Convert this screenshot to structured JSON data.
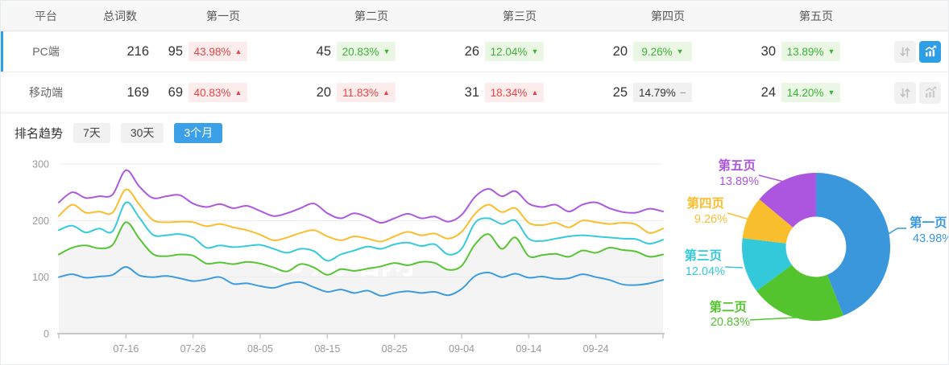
{
  "table": {
    "headers": [
      "平台",
      "总词数",
      "第一页",
      "第二页",
      "第三页",
      "第四页",
      "第五页"
    ],
    "rows": [
      {
        "platform": "PC端",
        "total": "216",
        "active": true,
        "pages": [
          {
            "count": "95",
            "pct": "43.98%",
            "dir": "up",
            "tone": "red"
          },
          {
            "count": "45",
            "pct": "20.83%",
            "dir": "down",
            "tone": "green"
          },
          {
            "count": "26",
            "pct": "12.04%",
            "dir": "down",
            "tone": "green"
          },
          {
            "count": "20",
            "pct": "9.26%",
            "dir": "down",
            "tone": "green"
          },
          {
            "count": "30",
            "pct": "13.89%",
            "dir": "down",
            "tone": "green"
          }
        ],
        "trend_button_active": true
      },
      {
        "platform": "移动端",
        "total": "169",
        "active": false,
        "pages": [
          {
            "count": "69",
            "pct": "40.83%",
            "dir": "up",
            "tone": "red"
          },
          {
            "count": "20",
            "pct": "11.83%",
            "dir": "up",
            "tone": "red"
          },
          {
            "count": "31",
            "pct": "18.34%",
            "dir": "up",
            "tone": "red"
          },
          {
            "count": "25",
            "pct": "14.79%",
            "dir": "flat",
            "tone": "gray"
          },
          {
            "count": "24",
            "pct": "14.20%",
            "dir": "down",
            "tone": "green"
          }
        ],
        "trend_button_active": false
      }
    ],
    "icons": {
      "sort": "sort-arrows-icon",
      "trend": "trend-chart-icon"
    }
  },
  "trend_section": {
    "label": "排名趋势",
    "tabs": [
      {
        "label": "7天",
        "active": false
      },
      {
        "label": "30天",
        "active": false
      },
      {
        "label": "3个月",
        "active": true
      }
    ]
  },
  "watermark": "爱站网",
  "colors": {
    "accent_blue": "#2e9ee6",
    "badge_red_text": "#e64545",
    "badge_green_text": "#3cb435",
    "area_fill": "#f4f4f4"
  },
  "chart_data": [
    {
      "type": "line",
      "title": "排名趋势 (3个月)",
      "x_tick_labels": [
        "07-16",
        "07-26",
        "08-05",
        "08-15",
        "08-25",
        "09-04",
        "09-14",
        "09-24"
      ],
      "x_tick_indices": [
        5,
        10,
        15,
        20,
        25,
        30,
        35,
        40
      ],
      "ylim": [
        0,
        300
      ],
      "yticks": [
        0,
        100,
        200,
        300
      ],
      "grid": true,
      "legend": "none",
      "series": [
        {
          "name": "第一页",
          "color": "#3e9bdd",
          "values": [
            100,
            105,
            99,
            101,
            104,
            118,
            103,
            100,
            102,
            98,
            93,
            96,
            100,
            88,
            89,
            84,
            81,
            88,
            91,
            82,
            74,
            78,
            72,
            76,
            67,
            72,
            75,
            72,
            74,
            68,
            79,
            102,
            108,
            100,
            106,
            99,
            101,
            97,
            98,
            105,
            100,
            95,
            87,
            86,
            89,
            95
          ]
        },
        {
          "name": "第二页",
          "color": "#57c433",
          "area": true,
          "area_color": "#f4f4f4",
          "values": [
            140,
            152,
            156,
            151,
            157,
            197,
            168,
            141,
            137,
            140,
            138,
            124,
            126,
            123,
            127,
            124,
            117,
            110,
            123,
            117,
            104,
            114,
            111,
            115,
            119,
            125,
            121,
            127,
            125,
            113,
            120,
            158,
            176,
            150,
            170,
            137,
            139,
            141,
            136,
            147,
            143,
            152,
            148,
            145,
            136,
            140
          ]
        },
        {
          "name": "第三页",
          "color": "#36cadc",
          "values": [
            183,
            191,
            179,
            186,
            181,
            232,
            205,
            175,
            174,
            176,
            170,
            152,
            156,
            153,
            155,
            157,
            150,
            143,
            150,
            146,
            129,
            140,
            147,
            154,
            150,
            158,
            161,
            155,
            158,
            140,
            150,
            196,
            204,
            194,
            200,
            168,
            164,
            168,
            172,
            174,
            172,
            170,
            168,
            167,
            159,
            166
          ]
        },
        {
          "name": "第四页",
          "color": "#fabd2e",
          "values": [
            208,
            228,
            214,
            216,
            214,
            255,
            228,
            201,
            197,
            198,
            197,
            190,
            194,
            188,
            183,
            175,
            165,
            170,
            178,
            183,
            172,
            165,
            172,
            168,
            163,
            172,
            180,
            174,
            177,
            168,
            180,
            212,
            228,
            215,
            222,
            196,
            192,
            196,
            188,
            200,
            197,
            194,
            196,
            193,
            178,
            186
          ]
        },
        {
          "name": "第五页",
          "color": "#ac58df",
          "values": [
            232,
            250,
            240,
            243,
            246,
            289,
            260,
            240,
            243,
            245,
            230,
            224,
            229,
            222,
            226,
            217,
            208,
            213,
            222,
            230,
            213,
            204,
            213,
            206,
            196,
            204,
            212,
            204,
            207,
            198,
            210,
            242,
            256,
            243,
            252,
            230,
            224,
            228,
            216,
            228,
            232,
            222,
            215,
            214,
            221,
            216
          ]
        }
      ]
    },
    {
      "type": "pie",
      "subtype": "donut",
      "slices": [
        {
          "name": "第一页",
          "value": 43.98,
          "color": "#3a97dc"
        },
        {
          "name": "第二页",
          "value": 20.83,
          "color": "#53c42d"
        },
        {
          "name": "第三页",
          "value": 12.04,
          "color": "#33c9db"
        },
        {
          "name": "第四页",
          "value": 9.26,
          "color": "#f9be2d"
        },
        {
          "name": "第五页",
          "value": 13.89,
          "color": "#ac55df"
        }
      ]
    }
  ]
}
